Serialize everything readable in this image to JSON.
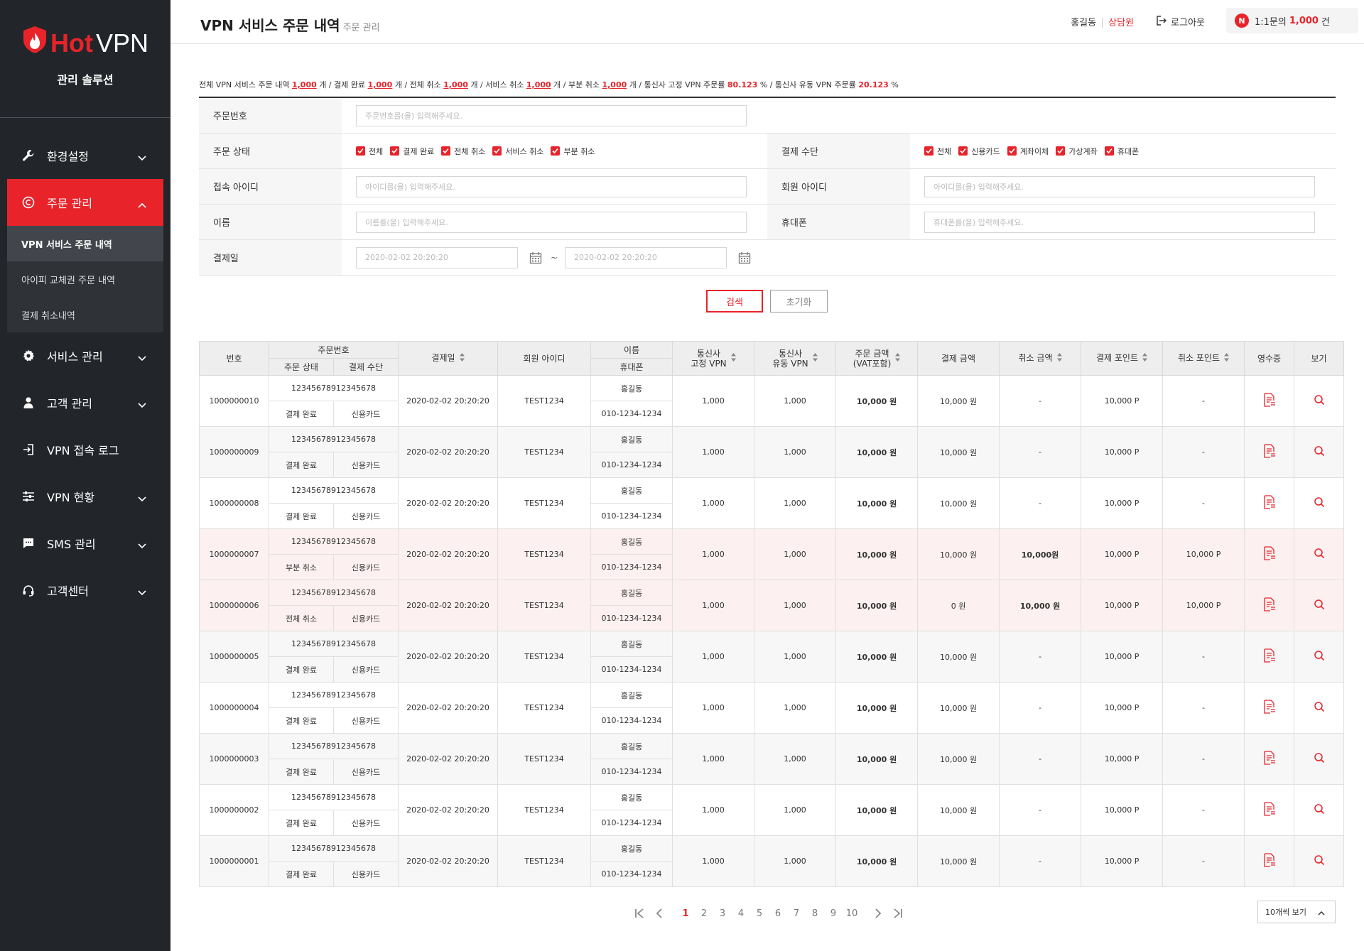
{
  "brand": {
    "hot": "Hot",
    "vpn": "VPN",
    "subtitle": "관리 솔루션"
  },
  "nav": {
    "items": [
      {
        "label": "환경설정",
        "icon": "wrench-icon"
      },
      {
        "label": "주문 관리",
        "icon": "copyright-icon"
      },
      {
        "label": "서비스 관리",
        "icon": "gear-icon"
      },
      {
        "label": "고객 관리",
        "icon": "user-icon"
      },
      {
        "label": "VPN 접속 로그",
        "icon": "login-icon"
      },
      {
        "label": "VPN 현황",
        "icon": "sliders-icon"
      },
      {
        "label": "SMS 관리",
        "icon": "message-icon"
      },
      {
        "label": "고객센터",
        "icon": "headset-icon"
      }
    ],
    "sub": [
      "VPN 서비스 주문 내역",
      "아이피 교체권 주문 내역",
      "결제 취소내역"
    ]
  },
  "header": {
    "title": "VPN 서비스 주문 내역",
    "crumb": "주문 관리",
    "user": "홍길동",
    "role": "상담원",
    "logout": "로그아웃",
    "badge_n": "N",
    "badge_pre": "1:1문의",
    "badge_count": "1,000",
    "badge_post": "건"
  },
  "summary": {
    "t1": "전체 VPN 서비스 주문 내역",
    "v1": "1,000",
    "u1": "개 / 결제 완료",
    "v2": "1,000",
    "u2": "개 / 전체 취소",
    "v3": "1,000",
    "u3": "개 / 서비스 취소",
    "v4": "1,000",
    "u4": "개 / 부분 취소",
    "v5": "1,000",
    "u5": "개 / 통신사 고정 VPN 주문률",
    "p1": "80.123",
    "u6": "% / 통신사 유동 VPN 주문률",
    "p2": "20.123",
    "u7": "%"
  },
  "filter": {
    "order_no_label": "주문번호",
    "order_no_ph": "주문번호를(을) 입력해주세요.",
    "status_label": "주문 상태",
    "status_opts": [
      "전체",
      "결제 완료",
      "전체 취소",
      "서비스 취소",
      "부분 취소"
    ],
    "pay_label": "결제 수단",
    "pay_opts": [
      "전체",
      "신용카드",
      "계좌이체",
      "가상계좌",
      "휴대폰"
    ],
    "login_label": "접속 아이디",
    "login_ph": "아이디를(을) 입력해주세요.",
    "member_label": "회원 아이디",
    "member_ph": "아이디를(을) 입력해주세요.",
    "name_label": "이름",
    "name_ph": "이름를(을) 입력해주세요.",
    "phone_label": "휴대폰",
    "phone_ph": "휴대폰를(을) 입력해주세요.",
    "date_label": "결제일",
    "date_from": "2020-02-02 20:20:20",
    "date_to": "2020-02-02 20:20:20",
    "tilde": "~",
    "search": "검색",
    "reset": "초기화"
  },
  "table": {
    "h_no": "번호",
    "h_order": "주문번호",
    "h_status": "주문 상태",
    "h_pay": "결제 수단",
    "h_date": "결제일",
    "h_member": "회원 아이디",
    "h_name": "이름",
    "h_phone": "휴대폰",
    "h_fixed": "통신사\n고정 VPN",
    "h_fixed1": "통신사",
    "h_fixed2": "고정 VPN",
    "h_flow1": "통신사",
    "h_flow2": "유동 VPN",
    "h_amount1": "주문 금액",
    "h_amount2": "(VAT포함)",
    "h_paid": "결제 금액",
    "h_cancel": "취소 금액",
    "h_point": "결제 포인트",
    "h_cpoint": "취소 포인트",
    "h_receipt": "영수증",
    "h_view": "보기",
    "rows": [
      {
        "no": "1000000010",
        "order": "12345678912345678",
        "status": "결제 완료",
        "pay": "신용카드",
        "date": "2020-02-02 20:20:20",
        "member": "TEST1234",
        "name": "홍길동",
        "phone": "010-1234-1234",
        "fixed": "1,000",
        "flow": "1,000",
        "amount": "10,000 원",
        "paid": "10,000 원",
        "cancel": "-",
        "point": "10,000 P",
        "cpoint": "-",
        "tone": "white"
      },
      {
        "no": "1000000009",
        "order": "12345678912345678",
        "status": "결제 완료",
        "pay": "신용카드",
        "date": "2020-02-02 20:20:20",
        "member": "TEST1234",
        "name": "홍길동",
        "phone": "010-1234-1234",
        "fixed": "1,000",
        "flow": "1,000",
        "amount": "10,000 원",
        "paid": "10,000 원",
        "cancel": "-",
        "point": "10,000 P",
        "cpoint": "-",
        "tone": "light"
      },
      {
        "no": "1000000008",
        "order": "12345678912345678",
        "status": "결제 완료",
        "pay": "신용카드",
        "date": "2020-02-02 20:20:20",
        "member": "TEST1234",
        "name": "홍길동",
        "phone": "010-1234-1234",
        "fixed": "1,000",
        "flow": "1,000",
        "amount": "10,000 원",
        "paid": "10,000 원",
        "cancel": "-",
        "point": "10,000 P",
        "cpoint": "-",
        "tone": "white"
      },
      {
        "no": "1000000007",
        "order": "12345678912345678",
        "status": "부분 취소",
        "pay": "신용카드",
        "date": "2020-02-02 20:20:20",
        "member": "TEST1234",
        "name": "홍길동",
        "phone": "010-1234-1234",
        "fixed": "1,000",
        "flow": "1,000",
        "amount": "10,000 원",
        "paid": "10,000 원",
        "cancel": "10,000원",
        "point": "10,000 P",
        "cpoint": "10,000 P",
        "tone": "pink"
      },
      {
        "no": "1000000006",
        "order": "12345678912345678",
        "status": "전체 취소",
        "pay": "신용카드",
        "date": "2020-02-02 20:20:20",
        "member": "TEST1234",
        "name": "홍길동",
        "phone": "010-1234-1234",
        "fixed": "1,000",
        "flow": "1,000",
        "amount": "10,000 원",
        "paid": "0 원",
        "cancel": "10,000 원",
        "point": "10,000 P",
        "cpoint": "10,000 P",
        "tone": "pink"
      },
      {
        "no": "1000000005",
        "order": "12345678912345678",
        "status": "결제 완료",
        "pay": "신용카드",
        "date": "2020-02-02 20:20:20",
        "member": "TEST1234",
        "name": "홍길동",
        "phone": "010-1234-1234",
        "fixed": "1,000",
        "flow": "1,000",
        "amount": "10,000 원",
        "paid": "10,000 원",
        "cancel": "-",
        "point": "10,000 P",
        "cpoint": "-",
        "tone": "light"
      },
      {
        "no": "1000000004",
        "order": "12345678912345678",
        "status": "결제 완료",
        "pay": "신용카드",
        "date": "2020-02-02 20:20:20",
        "member": "TEST1234",
        "name": "홍길동",
        "phone": "010-1234-1234",
        "fixed": "1,000",
        "flow": "1,000",
        "amount": "10,000 원",
        "paid": "10,000 원",
        "cancel": "-",
        "point": "10,000 P",
        "cpoint": "-",
        "tone": "white"
      },
      {
        "no": "1000000003",
        "order": "12345678912345678",
        "status": "결제 완료",
        "pay": "신용카드",
        "date": "2020-02-02 20:20:20",
        "member": "TEST1234",
        "name": "홍길동",
        "phone": "010-1234-1234",
        "fixed": "1,000",
        "flow": "1,000",
        "amount": "10,000 원",
        "paid": "10,000 원",
        "cancel": "-",
        "point": "10,000 P",
        "cpoint": "-",
        "tone": "light"
      },
      {
        "no": "1000000002",
        "order": "12345678912345678",
        "status": "결제 완료",
        "pay": "신용카드",
        "date": "2020-02-02 20:20:20",
        "member": "TEST1234",
        "name": "홍길동",
        "phone": "010-1234-1234",
        "fixed": "1,000",
        "flow": "1,000",
        "amount": "10,000 원",
        "paid": "10,000 원",
        "cancel": "-",
        "point": "10,000 P",
        "cpoint": "-",
        "tone": "white"
      },
      {
        "no": "1000000001",
        "order": "12345678912345678",
        "status": "결제 완료",
        "pay": "신용카드",
        "date": "2020-02-02 20:20:20",
        "member": "TEST1234",
        "name": "홍길동",
        "phone": "010-1234-1234",
        "fixed": "1,000",
        "flow": "1,000",
        "amount": "10,000 원",
        "paid": "10,000 원",
        "cancel": "-",
        "point": "10,000 P",
        "cpoint": "-",
        "tone": "light"
      }
    ]
  },
  "pager": {
    "pages": [
      "1",
      "2",
      "3",
      "4",
      "5",
      "6",
      "7",
      "8",
      "9",
      "10"
    ],
    "current": "1",
    "per_page": "10개씩 보기"
  },
  "colors": {
    "accent": "#e8232a",
    "sidebar": "#22262b",
    "blue": "#3a8de0",
    "green": "#7a9d1e"
  }
}
